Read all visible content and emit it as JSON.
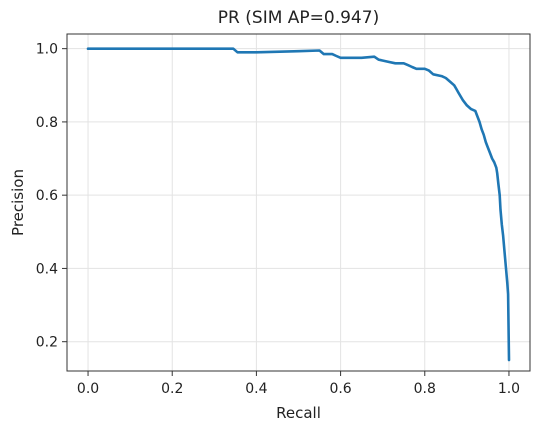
{
  "chart_data": {
    "type": "line",
    "title": "PR (SIM AP=0.947)",
    "xlabel": "Recall",
    "ylabel": "Precision",
    "xlim": [
      -0.05,
      1.05
    ],
    "ylim": [
      0.12,
      1.04
    ],
    "grid": true,
    "xticks": [
      0.0,
      0.2,
      0.4,
      0.6,
      0.8,
      1.0
    ],
    "xtick_labels": [
      "0.0",
      "0.2",
      "0.4",
      "0.6",
      "0.8",
      "1.0"
    ],
    "yticks": [
      0.2,
      0.4,
      0.6,
      0.8,
      1.0
    ],
    "ytick_labels": [
      "0.2",
      "0.4",
      "0.6",
      "0.8",
      "1.0"
    ],
    "line_color": "#1f77b4",
    "series": [
      {
        "x": [
          0.0,
          0.1,
          0.2,
          0.3,
          0.345,
          0.355,
          0.4,
          0.5,
          0.55,
          0.56,
          0.58,
          0.59,
          0.6,
          0.65,
          0.68,
          0.69,
          0.71,
          0.73,
          0.75,
          0.76,
          0.77,
          0.78,
          0.8,
          0.81,
          0.82,
          0.84,
          0.85,
          0.86,
          0.87,
          0.875,
          0.88,
          0.89,
          0.9,
          0.91,
          0.92,
          0.925,
          0.93,
          0.935,
          0.94,
          0.945,
          0.95,
          0.955,
          0.96,
          0.965,
          0.97,
          0.972,
          0.975,
          0.978,
          0.98,
          0.983,
          0.986,
          0.99,
          0.993,
          0.996,
          0.998,
          1.0
        ],
        "y": [
          1.0,
          1.0,
          1.0,
          1.0,
          1.0,
          0.99,
          0.99,
          0.993,
          0.995,
          0.985,
          0.985,
          0.98,
          0.975,
          0.975,
          0.978,
          0.97,
          0.965,
          0.96,
          0.96,
          0.955,
          0.95,
          0.945,
          0.945,
          0.94,
          0.93,
          0.925,
          0.92,
          0.91,
          0.9,
          0.89,
          0.88,
          0.86,
          0.845,
          0.835,
          0.83,
          0.815,
          0.8,
          0.78,
          0.765,
          0.745,
          0.73,
          0.715,
          0.7,
          0.69,
          0.675,
          0.66,
          0.63,
          0.6,
          0.56,
          0.52,
          0.49,
          0.44,
          0.4,
          0.36,
          0.33,
          0.15
        ]
      }
    ]
  }
}
